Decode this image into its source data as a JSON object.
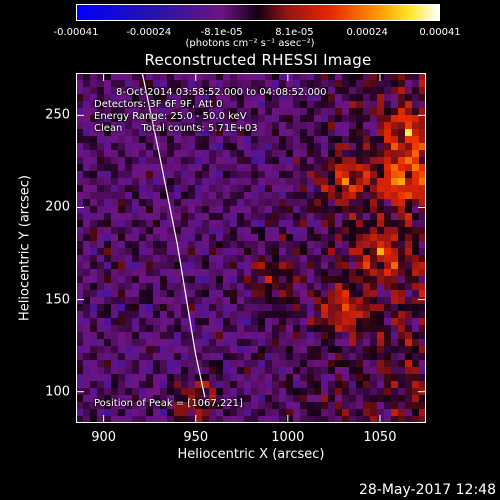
{
  "colorbar": {
    "ticks": [
      "-0.00041",
      "-0.00024",
      "-8.1e-05",
      "8.1e-05",
      "0.00024",
      "0.00041"
    ],
    "unit": "(photons cm⁻² s⁻¹ asec⁻²)",
    "range": [
      -0.00041,
      0.00041
    ]
  },
  "annotations": {
    "time_range": "8-Oct-2014 03:58:52.000 to 04:08:52.000",
    "detectors": "Detectors: 3F 6F 9F, Att 0",
    "energy": "Energy Range: 25.0 - 50.0 keV",
    "clean": "Clean      Total counts: 5.71E+03",
    "peak": "Position of Peak = [1067,221]"
  },
  "timestamp": "28-May-2017 12:48",
  "chart_data": {
    "type": "heatmap",
    "title": "Reconstructed RHESSI Image",
    "xlabel": "Heliocentric X (arcsec)",
    "ylabel": "Heliocentric Y (arcsec)",
    "xlim": [
      885,
      1075
    ],
    "ylim": [
      83,
      273
    ],
    "xticks": [
      900,
      950,
      1000,
      1050
    ],
    "yticks": [
      100,
      150,
      200,
      250
    ],
    "colormap": "blue-purple-red-orange-yellow-white",
    "zlim": [
      -0.00041,
      0.00041
    ],
    "peak_position": [
      1067,
      221
    ],
    "limb_curve": {
      "x": [
        921,
        930,
        940,
        950,
        955
      ],
      "y": [
        273,
        230,
        180,
        120,
        97
      ]
    },
    "bright_sources": [
      {
        "x": 1062,
        "y": 215,
        "intensity": 1.0
      },
      {
        "x": 1030,
        "y": 215,
        "intensity": 0.8
      },
      {
        "x": 1050,
        "y": 175,
        "intensity": 0.7
      },
      {
        "x": 1030,
        "y": 145,
        "intensity": 0.75
      },
      {
        "x": 1065,
        "y": 240,
        "intensity": 0.75
      },
      {
        "x": 950,
        "y": 95,
        "intensity": 0.6
      },
      {
        "x": 990,
        "y": 160,
        "intensity": 0.5
      }
    ],
    "grid": false,
    "legend": "none"
  }
}
